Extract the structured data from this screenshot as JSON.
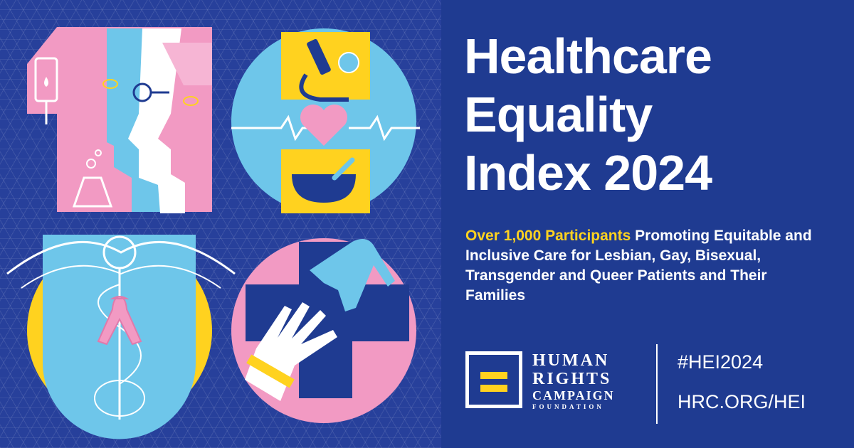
{
  "title": {
    "line1": "Healthcare",
    "line2": "Equality",
    "line3": "Index 2024"
  },
  "subtitle": {
    "highlight": "Over 1,000 Participants",
    "rest": "Promoting Equitable and Inclusive Care for Lesbian, Gay, Bisexual, Transgender and Queer Patients and Their Families"
  },
  "org": {
    "line1": "HUMAN",
    "line2": "RIGHTS",
    "line3": "CAMPAIGN",
    "line4": "FOUNDATION"
  },
  "hashtag": "#HEI2024",
  "website": "HRC.ORG/HEI",
  "colors": {
    "background": "#1f3b91",
    "accent_yellow": "#ffd21f",
    "pink": "#f29ac3",
    "light_blue": "#6ec6ea",
    "white": "#ffffff"
  }
}
